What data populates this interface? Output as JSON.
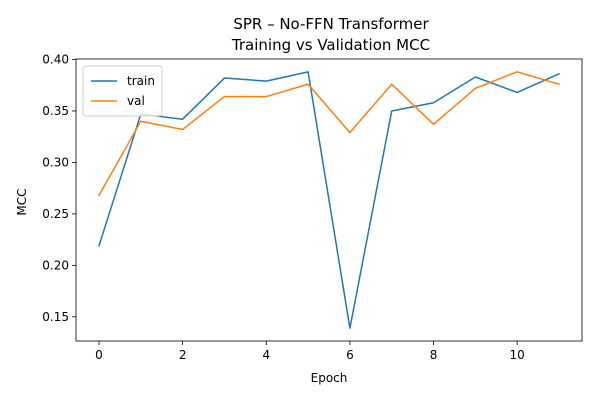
{
  "chart_data": {
    "type": "line",
    "title_lines": [
      "SPR – No-FFN Transformer",
      "Training vs Validation MCC"
    ],
    "xlabel": "Epoch",
    "ylabel": "MCC",
    "x": [
      0,
      1,
      2,
      3,
      4,
      5,
      6,
      7,
      8,
      9,
      10,
      11
    ],
    "series": [
      {
        "name": "train",
        "color": "#1f77b4",
        "values": [
          0.219,
          0.347,
          0.342,
          0.382,
          0.379,
          0.388,
          0.139,
          0.35,
          0.358,
          0.383,
          0.368,
          0.386
        ]
      },
      {
        "name": "val",
        "color": "#ff7f0e",
        "values": [
          0.268,
          0.34,
          0.332,
          0.364,
          0.364,
          0.376,
          0.329,
          0.376,
          0.337,
          0.372,
          0.388,
          0.376
        ]
      }
    ],
    "xlim": [
      -0.55,
      11.55
    ],
    "ylim": [
      0.1265,
      0.4005
    ],
    "xticks": [
      0,
      2,
      4,
      6,
      8,
      10
    ],
    "yticks": [
      0.15,
      0.2,
      0.25,
      0.3,
      0.35,
      0.4
    ],
    "ytick_labels": [
      "0.15",
      "0.20",
      "0.25",
      "0.30",
      "0.35",
      "0.40"
    ],
    "grid": false,
    "legend": "top-left"
  }
}
